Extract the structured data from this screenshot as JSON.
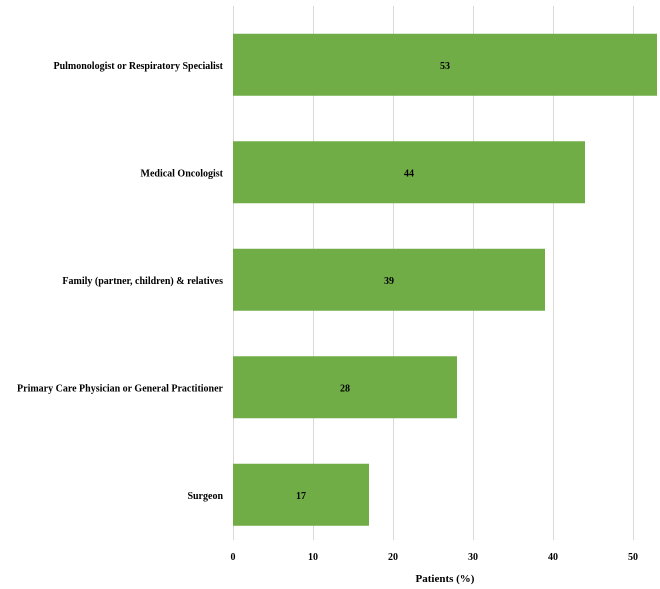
{
  "chart_data": {
    "type": "bar",
    "orientation": "horizontal",
    "categories": [
      "Pulmonologist or Respiratory Specialist",
      "Medical Oncologist",
      "Family (partner, children) & relatives",
      "Primary Care Physician or General Practitioner",
      "Surgeon"
    ],
    "values": [
      53,
      44,
      39,
      28,
      17
    ],
    "data_labels": [
      "53",
      "44",
      "39",
      "28",
      "17"
    ],
    "title": "",
    "xlabel": "Patients (%)",
    "ylabel": "",
    "xlim": [
      0,
      53
    ],
    "x_ticks": [
      0,
      10,
      20,
      30,
      40,
      50
    ],
    "grid": "vertical",
    "legend": "none",
    "bar_color": "#70ad47"
  }
}
